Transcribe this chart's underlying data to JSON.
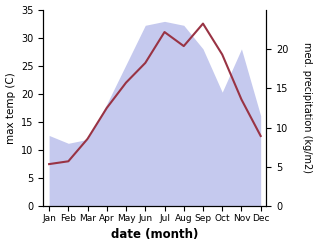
{
  "months": [
    "Jan",
    "Feb",
    "Mar",
    "Apr",
    "May",
    "Jun",
    "Jul",
    "Aug",
    "Sep",
    "Oct",
    "Nov",
    "Dec"
  ],
  "temp": [
    7.5,
    8.0,
    12.0,
    17.5,
    22.0,
    25.5,
    31.0,
    28.5,
    32.5,
    27.0,
    19.0,
    12.5
  ],
  "precip": [
    9.0,
    8.0,
    8.5,
    13.0,
    18.0,
    23.0,
    23.5,
    23.0,
    20.0,
    14.5,
    20.0,
    11.5
  ],
  "temp_color": "#993344",
  "precip_fill_color": "#c5c9ee",
  "background_color": "#ffffff",
  "xlabel": "date (month)",
  "ylabel_left": "max temp (C)",
  "ylabel_right": "med. precipitation (kg/m2)",
  "ylim_left": [
    0,
    35
  ],
  "ylim_right": [
    0,
    25
  ],
  "yticks_left": [
    0,
    5,
    10,
    15,
    20,
    25,
    30,
    35
  ],
  "yticks_right": [
    0,
    5,
    10,
    15,
    20
  ],
  "figsize": [
    3.18,
    2.47
  ],
  "dpi": 100
}
